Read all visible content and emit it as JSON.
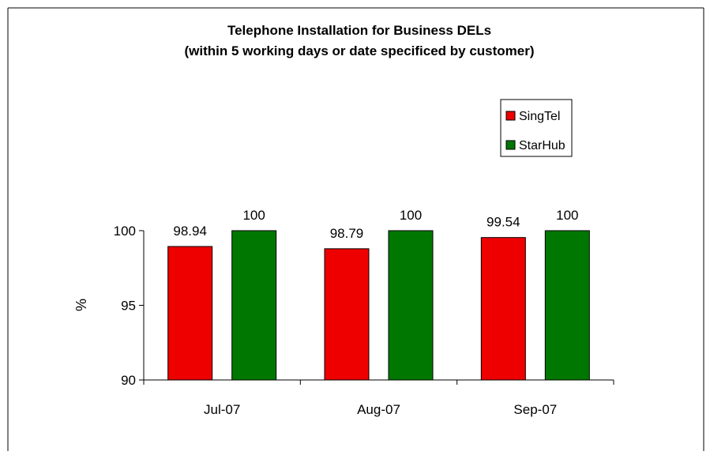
{
  "chart_data": {
    "type": "bar",
    "title_line1": "Telephone Installation for Business DELs",
    "title_line2": "(within 5 working days or date specificed by customer)",
    "xlabel": "",
    "ylabel": "%",
    "categories": [
      "Jul-07",
      "Aug-07",
      "Sep-07"
    ],
    "series": [
      {
        "name": "SingTel",
        "values": [
          98.94,
          98.79,
          99.54
        ],
        "data_labels": [
          "98.94",
          "98.79",
          "99.54"
        ],
        "color": "#ee0000"
      },
      {
        "name": "StarHub",
        "values": [
          100,
          100,
          100
        ],
        "data_labels": [
          "100",
          "100",
          "100"
        ],
        "color": "#007700"
      }
    ],
    "ylim": [
      90,
      100
    ],
    "yticks": [
      90,
      95,
      100
    ],
    "ytick_labels": [
      "90",
      "95",
      "100"
    ],
    "grid": false,
    "legend_position": "top-right"
  }
}
